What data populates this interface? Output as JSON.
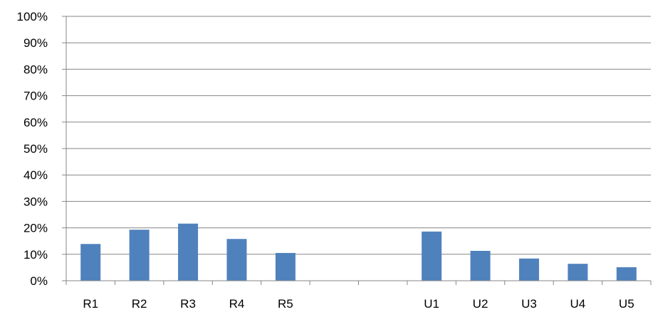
{
  "chart_data": {
    "type": "bar",
    "title": "",
    "xlabel": "",
    "ylabel": "",
    "categories": [
      "R1",
      "R2",
      "R3",
      "R4",
      "R5",
      "",
      "",
      "U1",
      "U2",
      "U3",
      "U4",
      "U5"
    ],
    "values": [
      13.9,
      19.3,
      21.6,
      15.8,
      10.5,
      null,
      null,
      18.6,
      11.3,
      8.4,
      6.4,
      5.1
    ],
    "ylim": [
      0,
      100
    ],
    "yticks": [
      "0%",
      "10%",
      "20%",
      "30%",
      "40%",
      "50%",
      "60%",
      "70%",
      "80%",
      "90%",
      "100%"
    ],
    "grid": true,
    "legend": "none",
    "colors": {
      "bar": "#4F81BD",
      "grid": "#868686",
      "axis": "#868686"
    }
  }
}
